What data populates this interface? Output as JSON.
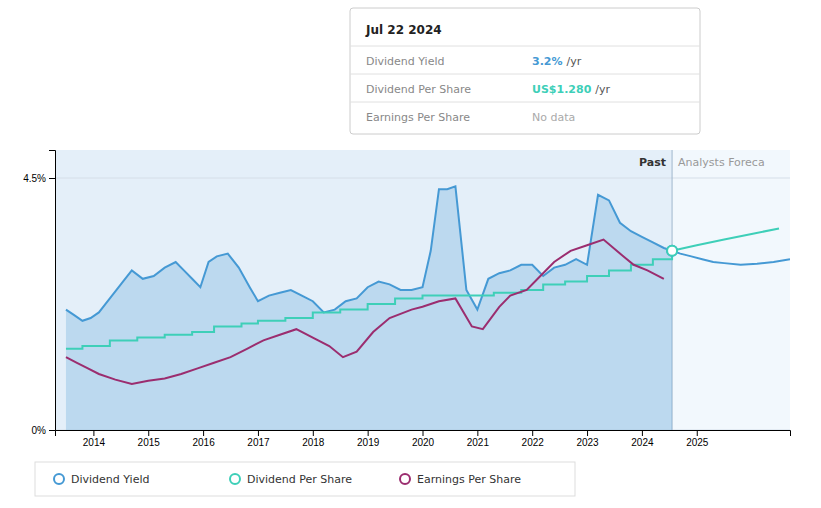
{
  "chart_data": {
    "type": "line",
    "xlim": [
      2013.3,
      2026.7
    ],
    "xticks": [
      2014,
      2015,
      2016,
      2017,
      2018,
      2019,
      2020,
      2021,
      2022,
      2023,
      2024,
      2025
    ],
    "ylim": [
      0,
      5.0
    ],
    "yticks": [
      {
        "value": 0,
        "label": "0%"
      },
      {
        "value": 4.5,
        "label": "4.5%"
      }
    ],
    "grid": true,
    "legend": "bottom",
    "regions": [
      {
        "label": "Past",
        "from": 2013.3,
        "to": 2024.55
      },
      {
        "label": "Analysts Foreca",
        "from": 2024.55,
        "to": 2026.7
      }
    ],
    "series": [
      {
        "name": "Dividend Yield",
        "type": "area",
        "color": "#4599d4",
        "x": [
          2013.5,
          2013.65,
          2013.8,
          2013.95,
          2014.1,
          2014.3,
          2014.5,
          2014.7,
          2014.9,
          2015.1,
          2015.3,
          2015.5,
          2015.65,
          2015.8,
          2015.95,
          2016.1,
          2016.25,
          2016.45,
          2016.65,
          2016.85,
          2017.0,
          2017.2,
          2017.4,
          2017.6,
          2017.8,
          2018.0,
          2018.2,
          2018.4,
          2018.6,
          2018.8,
          2019.0,
          2019.2,
          2019.4,
          2019.6,
          2019.8,
          2020.0,
          2020.15,
          2020.3,
          2020.45,
          2020.6,
          2020.8,
          2021.0,
          2021.2,
          2021.4,
          2021.6,
          2021.8,
          2022.0,
          2022.2,
          2022.4,
          2022.6,
          2022.8,
          2023.0,
          2023.2,
          2023.4,
          2023.6,
          2023.8,
          2024.0,
          2024.2,
          2024.4,
          2024.55
        ],
        "values": [
          2.15,
          2.05,
          1.95,
          2.0,
          2.1,
          2.35,
          2.6,
          2.85,
          2.7,
          2.75,
          2.9,
          3.0,
          2.85,
          2.7,
          2.55,
          3.0,
          3.1,
          3.15,
          2.9,
          2.55,
          2.3,
          2.4,
          2.45,
          2.5,
          2.4,
          2.3,
          2.1,
          2.15,
          2.3,
          2.35,
          2.55,
          2.65,
          2.6,
          2.5,
          2.5,
          2.55,
          3.2,
          4.3,
          4.3,
          4.35,
          2.5,
          2.15,
          2.7,
          2.8,
          2.85,
          2.95,
          2.95,
          2.75,
          2.9,
          2.95,
          3.05,
          2.95,
          4.2,
          4.1,
          3.7,
          3.55,
          3.45,
          3.35,
          3.25,
          3.2
        ]
      },
      {
        "type": "line",
        "color": "#4599d4",
        "x": [
          2024.55,
          2024.7,
          2024.9,
          2025.1,
          2025.3,
          2025.5,
          2025.8,
          2026.1,
          2026.4,
          2026.7
        ],
        "values": [
          3.2,
          3.15,
          3.1,
          3.05,
          3.0,
          2.98,
          2.95,
          2.97,
          3.0,
          3.05
        ]
      },
      {
        "name": "Dividend Per Share",
        "type": "step",
        "color": "#3ecfb8",
        "x": [
          2013.5,
          2013.8,
          2014.3,
          2014.8,
          2015.3,
          2015.8,
          2016.2,
          2016.7,
          2017.0,
          2017.5,
          2018.0,
          2018.5,
          2019.0,
          2019.5,
          2020.0,
          2020.4,
          2020.9,
          2021.3,
          2021.8,
          2022.2,
          2022.6,
          2023.0,
          2023.4,
          2023.8,
          2024.2,
          2024.55
        ],
        "values": [
          1.45,
          1.5,
          1.6,
          1.65,
          1.7,
          1.75,
          1.85,
          1.9,
          1.95,
          2.0,
          2.1,
          2.15,
          2.25,
          2.35,
          2.4,
          2.4,
          2.4,
          2.45,
          2.5,
          2.6,
          2.65,
          2.75,
          2.85,
          2.95,
          3.05,
          3.15
        ]
      },
      {
        "type": "line",
        "color": "#3ecfb8",
        "x": [
          2024.55,
          2025.0,
          2025.5,
          2026.0,
          2026.5
        ],
        "values": [
          3.2,
          3.3,
          3.4,
          3.5,
          3.6
        ]
      },
      {
        "name": "Earnings Per Share",
        "type": "line",
        "color": "#9b2d6f",
        "x": [
          2013.5,
          2013.7,
          2013.9,
          2014.1,
          2014.4,
          2014.7,
          2015.0,
          2015.3,
          2015.6,
          2015.9,
          2016.2,
          2016.5,
          2016.8,
          2017.1,
          2017.4,
          2017.7,
          2018.0,
          2018.3,
          2018.55,
          2018.8,
          2019.1,
          2019.4,
          2019.8,
          2020.0,
          2020.3,
          2020.6,
          2020.9,
          2021.1,
          2021.4,
          2021.6,
          2021.9,
          2022.1,
          2022.4,
          2022.7,
          2023.0,
          2023.3,
          2023.6,
          2023.85,
          2024.1,
          2024.4
        ],
        "values": [
          1.3,
          1.2,
          1.1,
          1.0,
          0.9,
          0.82,
          0.88,
          0.92,
          1.0,
          1.1,
          1.2,
          1.3,
          1.45,
          1.6,
          1.7,
          1.8,
          1.65,
          1.5,
          1.3,
          1.4,
          1.75,
          2.0,
          2.15,
          2.2,
          2.3,
          2.35,
          1.85,
          1.8,
          2.2,
          2.4,
          2.5,
          2.7,
          3.0,
          3.2,
          3.3,
          3.4,
          3.15,
          2.95,
          2.85,
          2.7
        ]
      },
      {
        "type": "scatter",
        "marker": "circle",
        "color": "#4599d4",
        "x": [
          2024.55
        ],
        "values": [
          3.2
        ]
      },
      {
        "type": "scatter",
        "marker": "circle",
        "color": "#3ecfb8",
        "x": [
          2024.55
        ],
        "values": [
          3.2
        ]
      }
    ],
    "tooltip": {
      "title": "Jul 22 2024",
      "rows": [
        {
          "label": "Dividend Yield",
          "value": "3.2%",
          "suffix": "/yr",
          "color": "#4599d4"
        },
        {
          "label": "Dividend Per Share",
          "value": "US$1.280",
          "suffix": "/yr",
          "color": "#3ecfb8"
        },
        {
          "label": "Earnings Per Share",
          "value": "No data",
          "color": "#aaaaaa"
        }
      ]
    }
  }
}
